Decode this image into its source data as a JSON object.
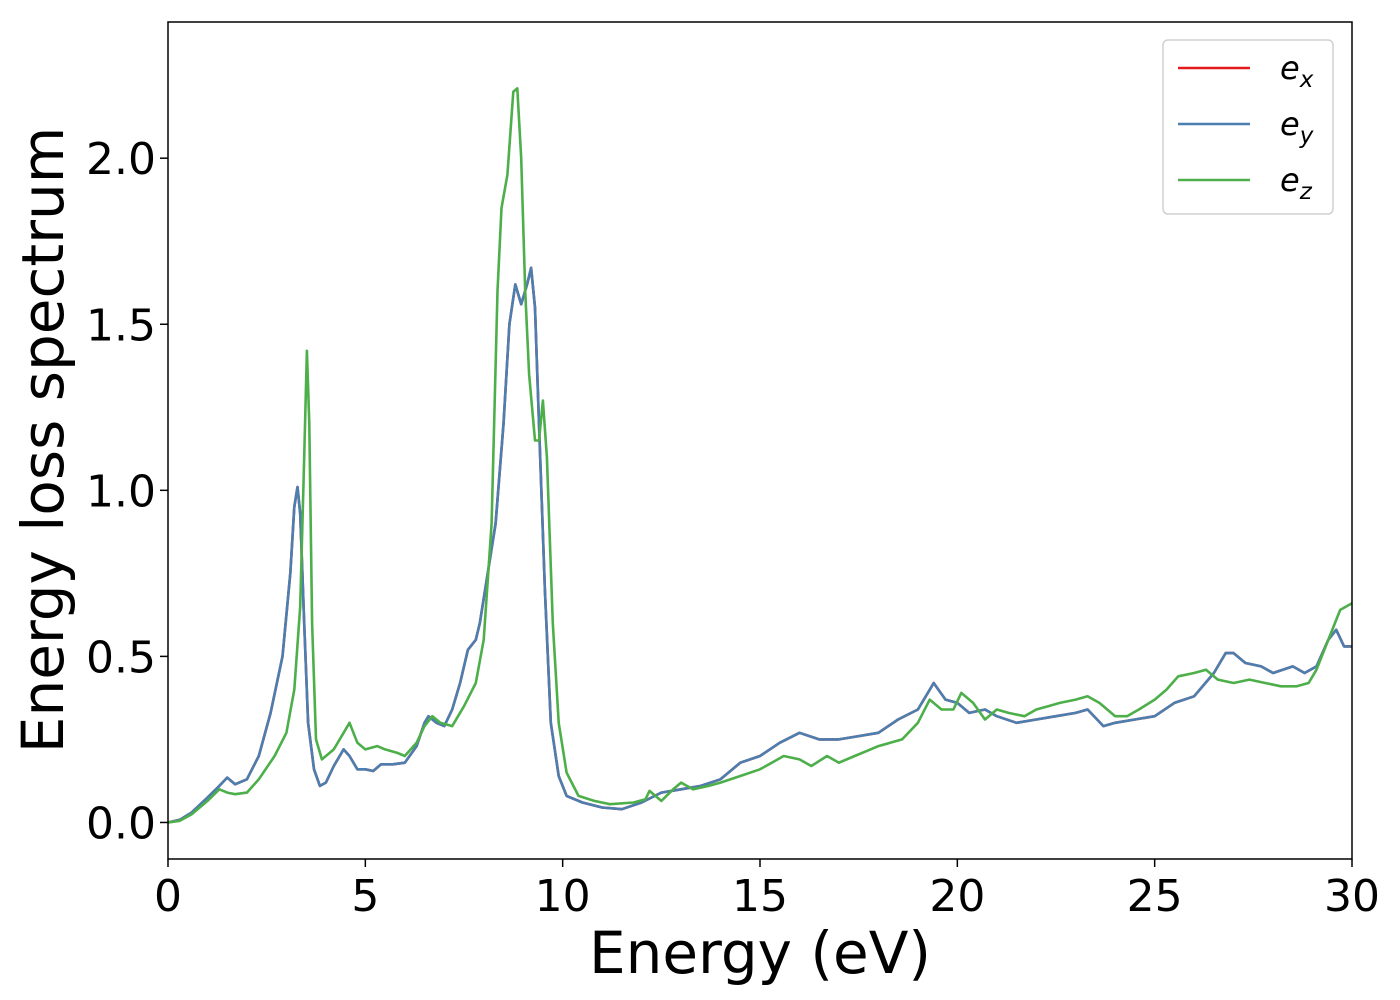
{
  "chart_data": {
    "type": "line",
    "title": "",
    "xlabel": "Energy (eV)",
    "ylabel": "Energy loss spectrum",
    "xlim": [
      0,
      30
    ],
    "ylim": [
      -0.11,
      2.41
    ],
    "xticks": [
      0,
      5,
      10,
      15,
      20,
      25,
      30
    ],
    "xtick_labels": [
      "0",
      "5",
      "10",
      "15",
      "20",
      "25",
      "30"
    ],
    "yticks": [
      0.0,
      0.5,
      1.0,
      1.5,
      2.0
    ],
    "ytick_labels": [
      "0.0",
      "0.5",
      "1.0",
      "1.5",
      "2.0"
    ],
    "grid": false,
    "legend": {
      "position": "top-right"
    },
    "series": [
      {
        "name": "e_x",
        "label_base": "e",
        "label_sub": "x",
        "color": "#e41a1c",
        "points": [
          [
            0,
            0
          ],
          [
            0.3,
            0.008
          ],
          [
            0.6,
            0.03
          ],
          [
            1.0,
            0.075
          ],
          [
            1.3,
            0.11
          ],
          [
            1.5,
            0.135
          ],
          [
            1.7,
            0.115
          ],
          [
            2.0,
            0.13
          ],
          [
            2.3,
            0.2
          ],
          [
            2.6,
            0.33
          ],
          [
            2.9,
            0.5
          ],
          [
            3.1,
            0.75
          ],
          [
            3.2,
            0.95
          ],
          [
            3.28,
            1.01
          ],
          [
            3.35,
            0.93
          ],
          [
            3.45,
            0.6
          ],
          [
            3.55,
            0.3
          ],
          [
            3.7,
            0.16
          ],
          [
            3.85,
            0.11
          ],
          [
            4.0,
            0.12
          ],
          [
            4.2,
            0.17
          ],
          [
            4.45,
            0.22
          ],
          [
            4.6,
            0.2
          ],
          [
            4.8,
            0.16
          ],
          [
            5.0,
            0.16
          ],
          [
            5.2,
            0.155
          ],
          [
            5.4,
            0.175
          ],
          [
            5.7,
            0.175
          ],
          [
            6.0,
            0.18
          ],
          [
            6.3,
            0.23
          ],
          [
            6.5,
            0.3
          ],
          [
            6.6,
            0.32
          ],
          [
            6.8,
            0.3
          ],
          [
            7.0,
            0.29
          ],
          [
            7.2,
            0.34
          ],
          [
            7.4,
            0.42
          ],
          [
            7.6,
            0.52
          ],
          [
            7.8,
            0.55
          ],
          [
            7.9,
            0.6
          ],
          [
            8.1,
            0.75
          ],
          [
            8.3,
            0.9
          ],
          [
            8.5,
            1.2
          ],
          [
            8.65,
            1.5
          ],
          [
            8.8,
            1.62
          ],
          [
            8.95,
            1.56
          ],
          [
            9.1,
            1.62
          ],
          [
            9.2,
            1.67
          ],
          [
            9.3,
            1.55
          ],
          [
            9.4,
            1.2
          ],
          [
            9.55,
            0.7
          ],
          [
            9.7,
            0.3
          ],
          [
            9.9,
            0.14
          ],
          [
            10.1,
            0.08
          ],
          [
            10.5,
            0.06
          ],
          [
            11.0,
            0.045
          ],
          [
            11.5,
            0.04
          ],
          [
            12.0,
            0.06
          ],
          [
            12.5,
            0.09
          ],
          [
            13.0,
            0.1
          ],
          [
            13.5,
            0.11
          ],
          [
            14.0,
            0.13
          ],
          [
            14.5,
            0.18
          ],
          [
            15.0,
            0.2
          ],
          [
            15.5,
            0.24
          ],
          [
            16.0,
            0.27
          ],
          [
            16.5,
            0.25
          ],
          [
            17.0,
            0.25
          ],
          [
            17.5,
            0.26
          ],
          [
            18.0,
            0.27
          ],
          [
            18.5,
            0.31
          ],
          [
            19.0,
            0.34
          ],
          [
            19.2,
            0.38
          ],
          [
            19.4,
            0.42
          ],
          [
            19.7,
            0.37
          ],
          [
            20.0,
            0.36
          ],
          [
            20.3,
            0.33
          ],
          [
            20.7,
            0.34
          ],
          [
            21.0,
            0.32
          ],
          [
            21.5,
            0.3
          ],
          [
            22.0,
            0.31
          ],
          [
            22.5,
            0.32
          ],
          [
            23.0,
            0.33
          ],
          [
            23.3,
            0.34
          ],
          [
            23.7,
            0.29
          ],
          [
            24.0,
            0.3
          ],
          [
            24.5,
            0.31
          ],
          [
            25.0,
            0.32
          ],
          [
            25.5,
            0.36
          ],
          [
            26.0,
            0.38
          ],
          [
            26.5,
            0.45
          ],
          [
            26.8,
            0.51
          ],
          [
            27.0,
            0.51
          ],
          [
            27.3,
            0.48
          ],
          [
            27.7,
            0.47
          ],
          [
            28.0,
            0.45
          ],
          [
            28.5,
            0.47
          ],
          [
            28.8,
            0.45
          ],
          [
            29.1,
            0.47
          ],
          [
            29.4,
            0.55
          ],
          [
            29.6,
            0.58
          ],
          [
            29.8,
            0.53
          ],
          [
            30.0,
            0.53
          ]
        ]
      },
      {
        "name": "e_y",
        "label_base": "e",
        "label_sub": "y",
        "color": "#4a7fb0",
        "points": [
          [
            0,
            0
          ],
          [
            0.3,
            0.008
          ],
          [
            0.6,
            0.03
          ],
          [
            1.0,
            0.075
          ],
          [
            1.3,
            0.11
          ],
          [
            1.5,
            0.135
          ],
          [
            1.7,
            0.115
          ],
          [
            2.0,
            0.13
          ],
          [
            2.3,
            0.2
          ],
          [
            2.6,
            0.33
          ],
          [
            2.9,
            0.5
          ],
          [
            3.1,
            0.75
          ],
          [
            3.2,
            0.95
          ],
          [
            3.28,
            1.01
          ],
          [
            3.35,
            0.93
          ],
          [
            3.45,
            0.6
          ],
          [
            3.55,
            0.3
          ],
          [
            3.7,
            0.16
          ],
          [
            3.85,
            0.11
          ],
          [
            4.0,
            0.12
          ],
          [
            4.2,
            0.17
          ],
          [
            4.45,
            0.22
          ],
          [
            4.6,
            0.2
          ],
          [
            4.8,
            0.16
          ],
          [
            5.0,
            0.16
          ],
          [
            5.2,
            0.155
          ],
          [
            5.4,
            0.175
          ],
          [
            5.7,
            0.175
          ],
          [
            6.0,
            0.18
          ],
          [
            6.3,
            0.23
          ],
          [
            6.5,
            0.3
          ],
          [
            6.6,
            0.32
          ],
          [
            6.8,
            0.3
          ],
          [
            7.0,
            0.29
          ],
          [
            7.2,
            0.34
          ],
          [
            7.4,
            0.42
          ],
          [
            7.6,
            0.52
          ],
          [
            7.8,
            0.55
          ],
          [
            7.9,
            0.6
          ],
          [
            8.1,
            0.75
          ],
          [
            8.3,
            0.9
          ],
          [
            8.5,
            1.2
          ],
          [
            8.65,
            1.5
          ],
          [
            8.8,
            1.62
          ],
          [
            8.95,
            1.56
          ],
          [
            9.1,
            1.62
          ],
          [
            9.2,
            1.67
          ],
          [
            9.3,
            1.55
          ],
          [
            9.4,
            1.2
          ],
          [
            9.55,
            0.7
          ],
          [
            9.7,
            0.3
          ],
          [
            9.9,
            0.14
          ],
          [
            10.1,
            0.08
          ],
          [
            10.5,
            0.06
          ],
          [
            11.0,
            0.045
          ],
          [
            11.5,
            0.04
          ],
          [
            12.0,
            0.06
          ],
          [
            12.5,
            0.09
          ],
          [
            13.0,
            0.1
          ],
          [
            13.5,
            0.11
          ],
          [
            14.0,
            0.13
          ],
          [
            14.5,
            0.18
          ],
          [
            15.0,
            0.2
          ],
          [
            15.5,
            0.24
          ],
          [
            16.0,
            0.27
          ],
          [
            16.5,
            0.25
          ],
          [
            17.0,
            0.25
          ],
          [
            17.5,
            0.26
          ],
          [
            18.0,
            0.27
          ],
          [
            18.5,
            0.31
          ],
          [
            19.0,
            0.34
          ],
          [
            19.2,
            0.38
          ],
          [
            19.4,
            0.42
          ],
          [
            19.7,
            0.37
          ],
          [
            20.0,
            0.36
          ],
          [
            20.3,
            0.33
          ],
          [
            20.7,
            0.34
          ],
          [
            21.0,
            0.32
          ],
          [
            21.5,
            0.3
          ],
          [
            22.0,
            0.31
          ],
          [
            22.5,
            0.32
          ],
          [
            23.0,
            0.33
          ],
          [
            23.3,
            0.34
          ],
          [
            23.7,
            0.29
          ],
          [
            24.0,
            0.3
          ],
          [
            24.5,
            0.31
          ],
          [
            25.0,
            0.32
          ],
          [
            25.5,
            0.36
          ],
          [
            26.0,
            0.38
          ],
          [
            26.5,
            0.45
          ],
          [
            26.8,
            0.51
          ],
          [
            27.0,
            0.51
          ],
          [
            27.3,
            0.48
          ],
          [
            27.7,
            0.47
          ],
          [
            28.0,
            0.45
          ],
          [
            28.5,
            0.47
          ],
          [
            28.8,
            0.45
          ],
          [
            29.1,
            0.47
          ],
          [
            29.4,
            0.55
          ],
          [
            29.6,
            0.58
          ],
          [
            29.8,
            0.53
          ],
          [
            30.0,
            0.53
          ]
        ]
      },
      {
        "name": "e_z",
        "label_base": "e",
        "label_sub": "z",
        "color": "#4daf4a",
        "points": [
          [
            0,
            0
          ],
          [
            0.3,
            0.005
          ],
          [
            0.6,
            0.025
          ],
          [
            1.0,
            0.065
          ],
          [
            1.3,
            0.1
          ],
          [
            1.5,
            0.09
          ],
          [
            1.7,
            0.085
          ],
          [
            2.0,
            0.09
          ],
          [
            2.3,
            0.13
          ],
          [
            2.7,
            0.2
          ],
          [
            3.0,
            0.27
          ],
          [
            3.2,
            0.4
          ],
          [
            3.35,
            0.65
          ],
          [
            3.45,
            1.1
          ],
          [
            3.52,
            1.42
          ],
          [
            3.58,
            1.2
          ],
          [
            3.65,
            0.6
          ],
          [
            3.75,
            0.25
          ],
          [
            3.9,
            0.19
          ],
          [
            4.2,
            0.22
          ],
          [
            4.45,
            0.27
          ],
          [
            4.6,
            0.3
          ],
          [
            4.8,
            0.24
          ],
          [
            5.0,
            0.22
          ],
          [
            5.3,
            0.23
          ],
          [
            5.5,
            0.22
          ],
          [
            5.8,
            0.21
          ],
          [
            6.0,
            0.2
          ],
          [
            6.3,
            0.24
          ],
          [
            6.5,
            0.29
          ],
          [
            6.7,
            0.32
          ],
          [
            6.9,
            0.3
          ],
          [
            7.2,
            0.29
          ],
          [
            7.5,
            0.35
          ],
          [
            7.8,
            0.42
          ],
          [
            8.0,
            0.55
          ],
          [
            8.2,
            0.9
          ],
          [
            8.35,
            1.6
          ],
          [
            8.45,
            1.85
          ],
          [
            8.6,
            1.95
          ],
          [
            8.75,
            2.2
          ],
          [
            8.85,
            2.21
          ],
          [
            8.95,
            2.0
          ],
          [
            9.05,
            1.6
          ],
          [
            9.15,
            1.35
          ],
          [
            9.3,
            1.15
          ],
          [
            9.4,
            1.15
          ],
          [
            9.5,
            1.27
          ],
          [
            9.6,
            1.1
          ],
          [
            9.75,
            0.6
          ],
          [
            9.9,
            0.3
          ],
          [
            10.1,
            0.15
          ],
          [
            10.4,
            0.08
          ],
          [
            10.8,
            0.065
          ],
          [
            11.2,
            0.055
          ],
          [
            11.8,
            0.06
          ],
          [
            12.1,
            0.07
          ],
          [
            12.2,
            0.095
          ],
          [
            12.5,
            0.065
          ],
          [
            12.8,
            0.1
          ],
          [
            13.0,
            0.12
          ],
          [
            13.3,
            0.1
          ],
          [
            13.7,
            0.11
          ],
          [
            14.0,
            0.12
          ],
          [
            14.5,
            0.14
          ],
          [
            15.0,
            0.16
          ],
          [
            15.3,
            0.18
          ],
          [
            15.6,
            0.2
          ],
          [
            16.0,
            0.19
          ],
          [
            16.3,
            0.17
          ],
          [
            16.7,
            0.2
          ],
          [
            17.0,
            0.18
          ],
          [
            17.4,
            0.2
          ],
          [
            17.8,
            0.22
          ],
          [
            18.0,
            0.23
          ],
          [
            18.3,
            0.24
          ],
          [
            18.6,
            0.25
          ],
          [
            19.0,
            0.3
          ],
          [
            19.3,
            0.37
          ],
          [
            19.6,
            0.34
          ],
          [
            19.9,
            0.34
          ],
          [
            20.1,
            0.39
          ],
          [
            20.4,
            0.36
          ],
          [
            20.7,
            0.31
          ],
          [
            21.0,
            0.34
          ],
          [
            21.3,
            0.33
          ],
          [
            21.7,
            0.32
          ],
          [
            22.0,
            0.34
          ],
          [
            22.3,
            0.35
          ],
          [
            22.6,
            0.36
          ],
          [
            23.0,
            0.37
          ],
          [
            23.3,
            0.38
          ],
          [
            23.6,
            0.36
          ],
          [
            24.0,
            0.32
          ],
          [
            24.3,
            0.32
          ],
          [
            24.6,
            0.34
          ],
          [
            25.0,
            0.37
          ],
          [
            25.3,
            0.4
          ],
          [
            25.6,
            0.44
          ],
          [
            26.0,
            0.45
          ],
          [
            26.3,
            0.46
          ],
          [
            26.6,
            0.43
          ],
          [
            27.0,
            0.42
          ],
          [
            27.4,
            0.43
          ],
          [
            27.8,
            0.42
          ],
          [
            28.2,
            0.41
          ],
          [
            28.6,
            0.41
          ],
          [
            28.9,
            0.42
          ],
          [
            29.1,
            0.46
          ],
          [
            29.4,
            0.55
          ],
          [
            29.7,
            0.64
          ],
          [
            30.0,
            0.66
          ]
        ]
      }
    ]
  }
}
